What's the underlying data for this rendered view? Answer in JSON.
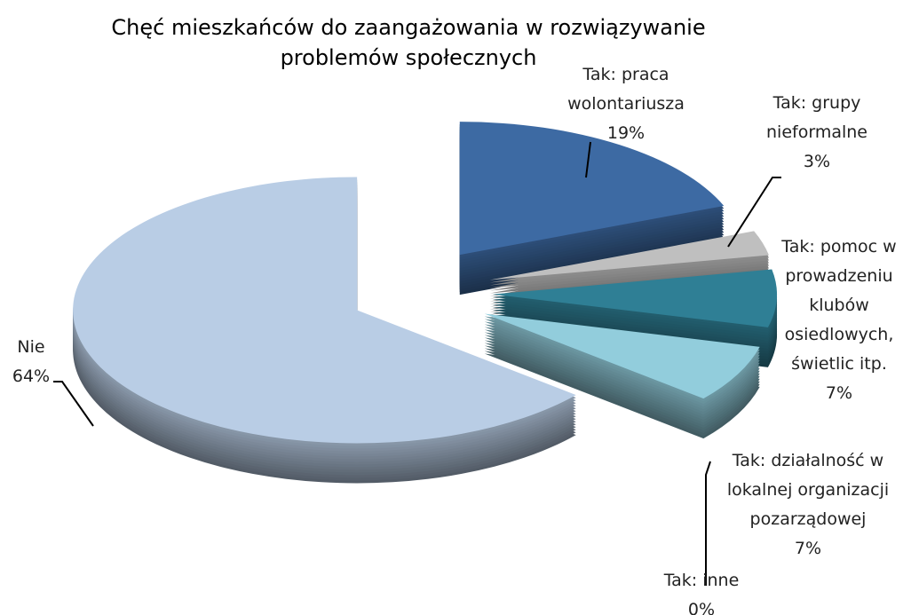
{
  "chart_data": {
    "type": "pie",
    "title": "Chęć mieszkańców do zaangażowania w rozwiązywanie problemów społecznych",
    "categories": [
      "Tak: praca wolontariusza",
      "Tak: grupy nieformalne",
      "Tak: pomoc w prowadzeniu klubów osiedlowych, świetlic itp.",
      "Tak: działalność w lokalnej organizacji pozarządowej",
      "Tak: inne",
      "Nie"
    ],
    "values": [
      19,
      3,
      7,
      7,
      0,
      64
    ],
    "value_labels": [
      "19%",
      "3%",
      "7%",
      "7%",
      "0%",
      "64%"
    ],
    "colors": [
      "#3d6aa3",
      "#bfbfbf",
      "#2f7f95",
      "#92cddc",
      "#1f3f58",
      "#b9cde5"
    ]
  }
}
